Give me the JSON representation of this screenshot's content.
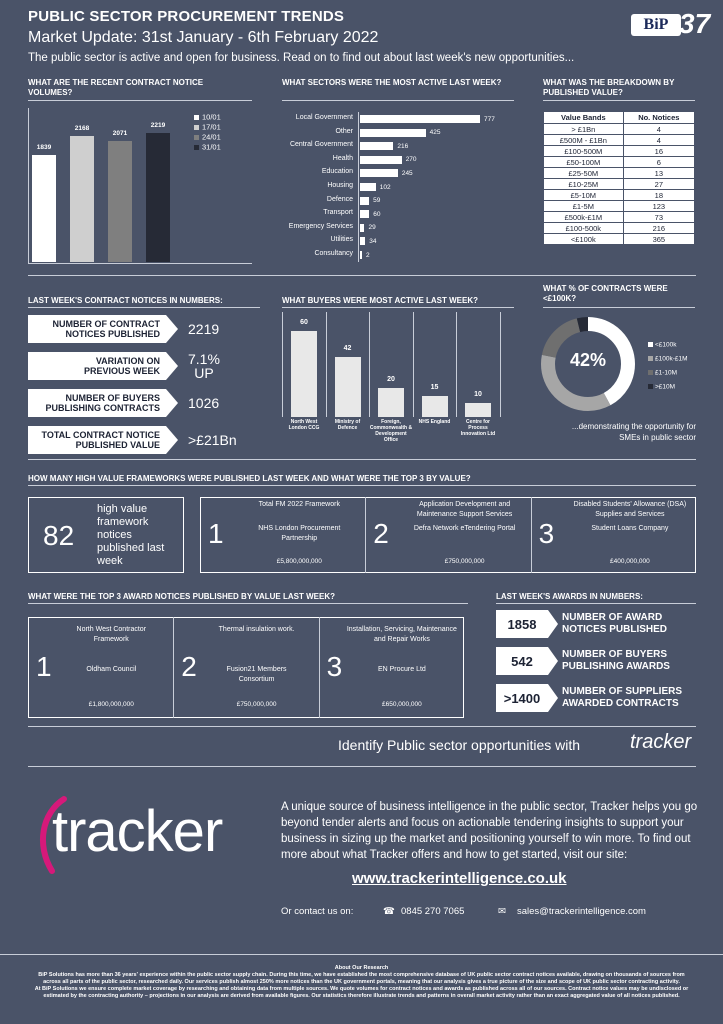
{
  "header": {
    "title": "PUBLIC SECTOR PROCUREMENT TRENDS",
    "subtitle": "Market Update: 31st January - 6th February 2022",
    "intro": "The public sector is active and open for business. Read on to find out about last week's new opportunities..."
  },
  "sections": {
    "contract_volumes": "WHAT ARE THE RECENT CONTRACT NOTICE VOLUMES?",
    "sectors": "WHAT SECTORS WERE THE MOST ACTIVE LAST WEEK?",
    "breakdown": "WHAT WAS THE BREAKDOWN BY PUBLISHED VALUE?",
    "numbers": "LAST WEEK'S CONTRACT NOTICES IN NUMBERS:",
    "buyers": "WHAT BUYERS WERE MOST ACTIVE LAST WEEK?",
    "under100k": "WHAT % OF CONTRACTS WERE <£100K?",
    "frameworks": "HOW MANY HIGH VALUE FRAMEWORKS WERE PUBLISHED LAST WEEK AND WHAT WERE THE TOP 3 BY VALUE?",
    "awards_top3": "WHAT WERE THE TOP 3 AWARD NOTICES PUBLISHED BY VALUE LAST WEEK?",
    "awards_numbers": "LAST WEEK'S AWARDS IN NUMBERS:"
  },
  "chart_data": [
    {
      "type": "bar",
      "categories": [
        "10/01",
        "17/01",
        "24/01",
        "31/01"
      ],
      "values": [
        1839,
        2168,
        2071,
        2219
      ],
      "colors": [
        "#ffffff",
        "#cfcfcf",
        "#7f7f7f",
        "#262a36"
      ],
      "ylim": [
        0,
        2400
      ]
    },
    {
      "type": "bar",
      "orientation": "horizontal",
      "categories": [
        "Local Government",
        "Other",
        "Central Government",
        "Health",
        "Education",
        "Housing",
        "Defence",
        "Transport",
        "Emergency Services",
        "Utilities",
        "Consultancy"
      ],
      "values": [
        777,
        425,
        216,
        270,
        245,
        102,
        59,
        60,
        29,
        34,
        2
      ],
      "xlim": [
        0,
        777
      ]
    },
    {
      "type": "bar",
      "categories": [
        "North West London CCG",
        "Ministry of Defence",
        "Foreign, Commonwealth & Development Office",
        "NHS England",
        "Centre for Process Innovation Ltd"
      ],
      "values": [
        60,
        42,
        20,
        15,
        10
      ],
      "ylim": [
        0,
        60
      ]
    },
    {
      "type": "pie",
      "center_label": "42%",
      "categories": [
        "<£100k",
        "£100k-£1M",
        "£1-10M",
        ">£10M"
      ],
      "values": [
        42,
        36,
        18,
        4
      ],
      "colors": [
        "#ffffff",
        "#a6a6a6",
        "#6f6f6f",
        "#262a36"
      ]
    }
  ],
  "value_bands": {
    "headers": [
      "Value Bands",
      "No. Notices"
    ],
    "rows": [
      [
        "> £1Bn",
        "4"
      ],
      [
        "£500M - £1Bn",
        "4"
      ],
      [
        "£100-500M",
        "16"
      ],
      [
        "£50-100M",
        "6"
      ],
      [
        "£25-50M",
        "13"
      ],
      [
        "£10-25M",
        "27"
      ],
      [
        "£5-10M",
        "18"
      ],
      [
        "£1-5M",
        "123"
      ],
      [
        "£500k-£1M",
        "73"
      ],
      [
        "£100-500k",
        "216"
      ],
      [
        "<£100k",
        "365"
      ]
    ]
  },
  "numbers": [
    {
      "label_1": "NUMBER OF CONTRACT",
      "label_2": "NOTICES PUBLISHED",
      "value_1": "2219",
      "value_2": ""
    },
    {
      "label_1": "VARIATION ON",
      "label_2": "PREVIOUS WEEK",
      "value_1": "7.1%",
      "value_2": "UP"
    },
    {
      "label_1": "NUMBER OF BUYERS",
      "label_2": "PUBLISHING CONTRACTS",
      "value_1": "1026",
      "value_2": ""
    },
    {
      "label_1": "TOTAL CONTRACT NOTICE",
      "label_2": "PUBLISHED VALUE",
      "value_1": ">£21Bn",
      "value_2": ""
    }
  ],
  "under100k_caption_1": "...demonstrating the opportunity for",
  "under100k_caption_2": "SMEs in public sector",
  "frameworks": {
    "count": "82",
    "count_label_1": "high value",
    "count_label_2": "framework",
    "count_label_3": "notices",
    "count_label_4": "published last",
    "count_label_5": "week",
    "items": [
      {
        "rank": "1",
        "title_1": "Total FM 2022 Framework",
        "title_2": "",
        "buyer_1": "NHS London Procurement",
        "buyer_2": "Partnership",
        "value": "£5,800,000,000"
      },
      {
        "rank": "2",
        "title_1": "Application Development and",
        "title_2": "Maintenance Support Services",
        "buyer_1": "Defra Network eTendering Portal",
        "buyer_2": "",
        "value": "£750,000,000"
      },
      {
        "rank": "3",
        "title_1": "Disabled Students' Allowance (DSA)",
        "title_2": "Supplies and Services",
        "buyer_1": "Student Loans Company",
        "buyer_2": "",
        "value": "£400,000,000"
      }
    ]
  },
  "awards_top3": [
    {
      "rank": "1",
      "title_1": "North West Contractor",
      "title_2": "Framework",
      "buyer_1": "Oldham Council",
      "buyer_2": "",
      "value": "£1,800,000,000"
    },
    {
      "rank": "2",
      "title_1": "Thermal insulation work.",
      "title_2": "",
      "buyer_1": "Fusion21 Members",
      "buyer_2": "Consortium",
      "value": "£750,000,000"
    },
    {
      "rank": "3",
      "title_1": "Installation, Servicing, Maintenance",
      "title_2": "and Repair Works",
      "buyer_1": "EN Procure Ltd",
      "buyer_2": "",
      "value": "£650,000,000"
    }
  ],
  "awards_numbers": [
    {
      "value": "1858",
      "label_1": "NUMBER OF AWARD",
      "label_2": "NOTICES PUBLISHED"
    },
    {
      "value": "542",
      "label_1": "NUMBER OF BUYERS",
      "label_2": "PUBLISHING AWARDS"
    },
    {
      "value": ">1400",
      "label_1": "NUMBER OF SUPPLIERS",
      "label_2": "AWARDED CONTRACTS"
    }
  ],
  "identify": "Identify Public sector opportunities with",
  "tracker_small": "tracker",
  "tracker_big": "tracker",
  "bip_logo": "BiP",
  "bip_37": "37",
  "promo": {
    "line_1": "A unique source of business intelligence in the public sector, Tracker helps you go",
    "line_2": "beyond tender alerts and focus on actionable tendering insights to support your",
    "line_3": "business in sizing up the market and positioning yourself to win more. To find out",
    "line_4": "more about what Tracker offers and how to get started, visit our site:",
    "url": "www.trackerintelligence.co.uk",
    "contact_label": "Or contact us on:",
    "phone": "0845 270 7065",
    "email": "sales@trackerintelligence.com"
  },
  "about": {
    "title": "About Our Research",
    "line_1": "BiP Solutions has more than 36 years' experience within the public sector supply chain. During this time, we have established the most comprehensive database of UK public sector contract notices available, drawing on thousands of sources from",
    "line_2": "across all parts of the public sector, researched daily. Our services publish almost 250% more notices than the UK government portals, meaning that our analysis gives a true picture of the size and scope of UK public sector contracting activity.",
    "line_3": "At BiP Solutions we ensure complete market coverage by researching and obtaining data from multiple sources. We quote volumes for contract notices and awards as published across all of our sources. Contract notice values may be undisclosed or",
    "line_4": "estimated by the contracting authority – projections in our analysis are derived from available figures. Our statistics therefore illustrate trends and patterns in overall market activity rather than an exact aggregated value of all notices published."
  }
}
